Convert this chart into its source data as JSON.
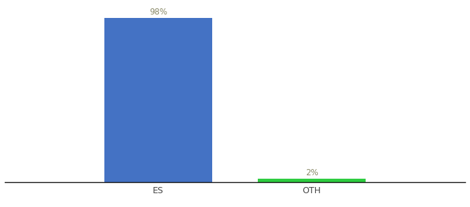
{
  "categories": [
    "ES",
    "OTH"
  ],
  "values": [
    98,
    2
  ],
  "bar_colors": [
    "#4472c4",
    "#2ecc40"
  ],
  "label_colors": [
    "#8b8b6a",
    "#8b8b6a"
  ],
  "labels": [
    "98%",
    "2%"
  ],
  "ylim": [
    0,
    105
  ],
  "background_color": "#ffffff",
  "xlabel_fontsize": 9,
  "label_fontsize": 8.5,
  "axis_line_color": "#111111",
  "tick_color": "#444444",
  "x_positions": [
    1,
    2
  ],
  "xlim": [
    0,
    3
  ],
  "bar_width": 0.7
}
